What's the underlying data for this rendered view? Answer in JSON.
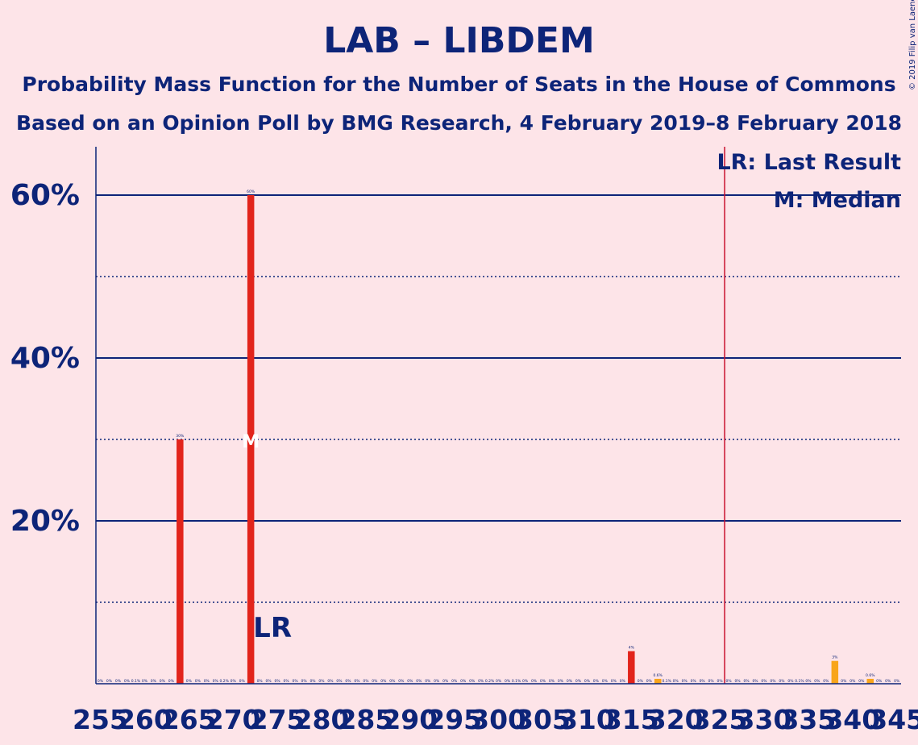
{
  "chart_data": {
    "type": "bar",
    "title": "LAB – LIBDEM",
    "subtitle": "Probability Mass Function for the Number of Seats in the House of Commons",
    "subtitle2": "Based on an Opinion Poll by BMG Research, 4 February 2019–8 February 2018",
    "copyright": "© 2019 Filip van Laenen",
    "legend": {
      "lr": "LR: Last Result",
      "median": "M: Median"
    },
    "lr_label": "LR",
    "median_marker": "M",
    "ylim": [
      0,
      65
    ],
    "y_ticks": [
      {
        "value": 20,
        "label": "20%"
      },
      {
        "value": 40,
        "label": "40%"
      },
      {
        "value": 60,
        "label": "60%"
      }
    ],
    "y_minor": [
      10,
      30,
      50
    ],
    "x_range": [
      255,
      345
    ],
    "x_ticks": [
      255,
      260,
      265,
      270,
      275,
      280,
      285,
      290,
      295,
      300,
      305,
      310,
      315,
      320,
      325,
      330,
      335,
      340,
      345
    ],
    "majority_line": 326,
    "last_result": 272,
    "median": 272,
    "colors": {
      "background": "#fde4e8",
      "text": "#0d2478",
      "bar_main": "#e2241b",
      "bar_alt": "#f8a51b",
      "majority": "#c8102e"
    },
    "bars": [
      {
        "seats": 264,
        "value": 30,
        "label": "30%",
        "color": "main"
      },
      {
        "seats": 272,
        "value": 60,
        "label": "60%",
        "color": "main"
      },
      {
        "seats": 315,
        "value": 4,
        "label": "4%",
        "color": "main"
      },
      {
        "seats": 318,
        "value": 0.6,
        "label": "0.6%",
        "color": "alt"
      },
      {
        "seats": 338,
        "value": 2.8,
        "label": "3%",
        "color": "alt"
      },
      {
        "seats": 342,
        "value": 0.6,
        "label": "0.6%",
        "color": "alt"
      }
    ],
    "small_labels": [
      {
        "seats": 255,
        "label": "0%"
      },
      {
        "seats": 256,
        "label": "0%"
      },
      {
        "seats": 257,
        "label": "0%"
      },
      {
        "seats": 258,
        "label": "0%"
      },
      {
        "seats": 259,
        "label": "0.1%"
      },
      {
        "seats": 260,
        "label": "0%"
      },
      {
        "seats": 261,
        "label": "0%"
      },
      {
        "seats": 262,
        "label": "0%"
      },
      {
        "seats": 263,
        "label": "0%"
      },
      {
        "seats": 265,
        "label": "0%"
      },
      {
        "seats": 266,
        "label": "0%"
      },
      {
        "seats": 267,
        "label": "0%"
      },
      {
        "seats": 268,
        "label": "0%"
      },
      {
        "seats": 269,
        "label": "0.2%"
      },
      {
        "seats": 270,
        "label": "0%"
      },
      {
        "seats": 271,
        "label": "0%"
      },
      {
        "seats": 273,
        "label": "0%"
      },
      {
        "seats": 274,
        "label": "0%"
      },
      {
        "seats": 275,
        "label": "0%"
      },
      {
        "seats": 276,
        "label": "0%"
      },
      {
        "seats": 277,
        "label": "0%"
      },
      {
        "seats": 278,
        "label": "0%"
      },
      {
        "seats": 279,
        "label": "0%"
      },
      {
        "seats": 280,
        "label": "0%"
      },
      {
        "seats": 281,
        "label": "0%"
      },
      {
        "seats": 282,
        "label": "0%"
      },
      {
        "seats": 283,
        "label": "0%"
      },
      {
        "seats": 284,
        "label": "0%"
      },
      {
        "seats": 285,
        "label": "0%"
      },
      {
        "seats": 286,
        "label": "0%"
      },
      {
        "seats": 287,
        "label": "0%"
      },
      {
        "seats": 288,
        "label": "0%"
      },
      {
        "seats": 289,
        "label": "0%"
      },
      {
        "seats": 290,
        "label": "0%"
      },
      {
        "seats": 291,
        "label": "0%"
      },
      {
        "seats": 292,
        "label": "0%"
      },
      {
        "seats": 293,
        "label": "0%"
      },
      {
        "seats": 294,
        "label": "0%"
      },
      {
        "seats": 295,
        "label": "0%"
      },
      {
        "seats": 296,
        "label": "0%"
      },
      {
        "seats": 297,
        "label": "0%"
      },
      {
        "seats": 298,
        "label": "0%"
      },
      {
        "seats": 299,
        "label": "0.2%"
      },
      {
        "seats": 300,
        "label": "0%"
      },
      {
        "seats": 301,
        "label": "0%"
      },
      {
        "seats": 302,
        "label": "0.1%"
      },
      {
        "seats": 303,
        "label": "0%"
      },
      {
        "seats": 304,
        "label": "0%"
      },
      {
        "seats": 305,
        "label": "0%"
      },
      {
        "seats": 306,
        "label": "0%"
      },
      {
        "seats": 307,
        "label": "0%"
      },
      {
        "seats": 308,
        "label": "0%"
      },
      {
        "seats": 309,
        "label": "0%"
      },
      {
        "seats": 310,
        "label": "0%"
      },
      {
        "seats": 311,
        "label": "0%"
      },
      {
        "seats": 312,
        "label": "0%"
      },
      {
        "seats": 313,
        "label": "0%"
      },
      {
        "seats": 314,
        "label": "0%"
      },
      {
        "seats": 316,
        "label": "0%"
      },
      {
        "seats": 317,
        "label": "0%"
      },
      {
        "seats": 319,
        "label": "0.1%"
      },
      {
        "seats": 320,
        "label": "0%"
      },
      {
        "seats": 321,
        "label": "0%"
      },
      {
        "seats": 322,
        "label": "0%"
      },
      {
        "seats": 323,
        "label": "0%"
      },
      {
        "seats": 324,
        "label": "0%"
      },
      {
        "seats": 325,
        "label": "0%"
      },
      {
        "seats": 326,
        "label": "0%"
      },
      {
        "seats": 327,
        "label": "0%"
      },
      {
        "seats": 328,
        "label": "0%"
      },
      {
        "seats": 329,
        "label": "0%"
      },
      {
        "seats": 330,
        "label": "0%"
      },
      {
        "seats": 331,
        "label": "0%"
      },
      {
        "seats": 332,
        "label": "0%"
      },
      {
        "seats": 333,
        "label": "0%"
      },
      {
        "seats": 334,
        "label": "0.1%"
      },
      {
        "seats": 335,
        "label": "0%"
      },
      {
        "seats": 336,
        "label": "0%"
      },
      {
        "seats": 337,
        "label": "0%"
      },
      {
        "seats": 339,
        "label": "0%"
      },
      {
        "seats": 340,
        "label": "0%"
      },
      {
        "seats": 341,
        "label": "0%"
      },
      {
        "seats": 343,
        "label": "0%"
      },
      {
        "seats": 344,
        "label": "0%"
      },
      {
        "seats": 345,
        "label": "0%"
      }
    ]
  }
}
